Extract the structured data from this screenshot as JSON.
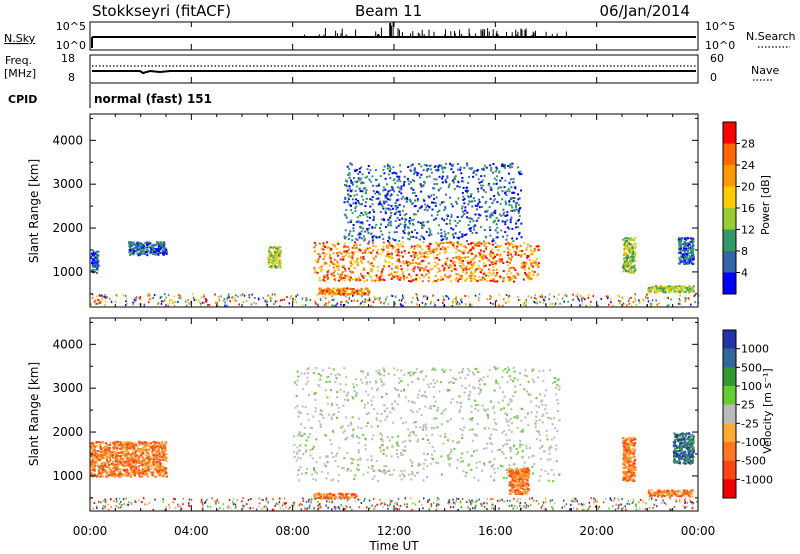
{
  "header": {
    "station": "Stokkseyri (fitACF)",
    "beam": "Beam 11",
    "date": "06/Jan/2014"
  },
  "panels": {
    "nsky_label": "N.Sky",
    "nsearch_label": "N.Search",
    "noise_ticks": [
      "10^5",
      "10^0"
    ],
    "freq_label": "Freq.",
    "freq_unit": "[MHz]",
    "freq_ticks": [
      "18",
      "8"
    ],
    "nave_label": "Nave",
    "nave_ticks": [
      "60",
      "0"
    ],
    "cpid_label": "CPID",
    "cpid_value": "normal (fast) 151"
  },
  "chart_data": [
    {
      "type": "heatmap",
      "name": "power",
      "ylabel": "Slant Range [km]",
      "xlabel": "",
      "xlim": [
        0,
        24
      ],
      "ylim": [
        200,
        4600
      ],
      "y_ticks": [
        1000,
        2000,
        3000,
        4000
      ],
      "colorbar_label": "Power [dB]",
      "colorbar_ticks": [
        "28",
        "24",
        "20",
        "16",
        "12",
        "8",
        "4"
      ],
      "colorbar_colors": [
        "#ff0000",
        "#ff6600",
        "#ff9900",
        "#ffcc00",
        "#99cc33",
        "#339966",
        "#3366aa",
        "#0000ff"
      ],
      "features": [
        {
          "t_start": 0.0,
          "t_end": 0.3,
          "r_min": 1000,
          "r_max": 1500,
          "level": "low"
        },
        {
          "t_start": 1.5,
          "t_end": 3.0,
          "r_min": 1400,
          "r_max": 1700,
          "level": "low"
        },
        {
          "t_start": 7.0,
          "t_end": 7.5,
          "r_min": 1100,
          "r_max": 1600,
          "level": "mid"
        },
        {
          "t_start": 8.8,
          "t_end": 17.7,
          "r_min": 800,
          "r_max": 1700,
          "level": "high"
        },
        {
          "t_start": 10.0,
          "t_end": 17.0,
          "r_min": 1700,
          "r_max": 3500,
          "level": "low"
        },
        {
          "t_start": 9.0,
          "t_end": 11.0,
          "r_min": 500,
          "r_max": 650,
          "level": "high"
        },
        {
          "t_start": 21.0,
          "t_end": 21.5,
          "r_min": 1000,
          "r_max": 1800,
          "level": "mid"
        },
        {
          "t_start": 22.0,
          "t_end": 23.8,
          "r_min": 550,
          "r_max": 700,
          "level": "mid"
        },
        {
          "t_start": 23.2,
          "t_end": 23.8,
          "r_min": 1200,
          "r_max": 1800,
          "level": "low"
        }
      ]
    },
    {
      "type": "heatmap",
      "name": "velocity",
      "ylabel": "Slant Range [km]",
      "xlabel": "Time UT",
      "xlim": [
        0,
        24
      ],
      "ylim": [
        200,
        4600
      ],
      "y_ticks": [
        1000,
        2000,
        3000,
        4000
      ],
      "x_ticks": [
        "00:00",
        "04:00",
        "08:00",
        "12:00",
        "16:00",
        "20:00",
        "00:00"
      ],
      "colorbar_label": "Velocity [m s⁻¹]",
      "colorbar_ticks": [
        "1000",
        "500",
        "100",
        "25",
        "-25",
        "-100",
        "-500",
        "-1000"
      ],
      "colorbar_colors": [
        "#2233aa",
        "#336699",
        "#339933",
        "#66cc33",
        "#bbbbbb",
        "#ffaa33",
        "#ff7722",
        "#ff4411",
        "#ee0000"
      ],
      "features": [
        {
          "t_start": 0.0,
          "t_end": 3.0,
          "r_min": 1000,
          "r_max": 1800,
          "level": "negative"
        },
        {
          "t_start": 8.0,
          "t_end": 18.5,
          "r_min": 900,
          "r_max": 3500,
          "level": "near-zero"
        },
        {
          "t_start": 16.5,
          "t_end": 17.3,
          "r_min": 600,
          "r_max": 1200,
          "level": "negative"
        },
        {
          "t_start": 8.8,
          "t_end": 10.5,
          "r_min": 500,
          "r_max": 620,
          "level": "negative"
        },
        {
          "t_start": 21.0,
          "t_end": 21.5,
          "r_min": 900,
          "r_max": 1900,
          "level": "negative"
        },
        {
          "t_start": 22.0,
          "t_end": 23.8,
          "r_min": 550,
          "r_max": 700,
          "level": "negative"
        },
        {
          "t_start": 23.0,
          "t_end": 23.8,
          "r_min": 1300,
          "r_max": 2000,
          "level": "positive"
        }
      ]
    }
  ]
}
